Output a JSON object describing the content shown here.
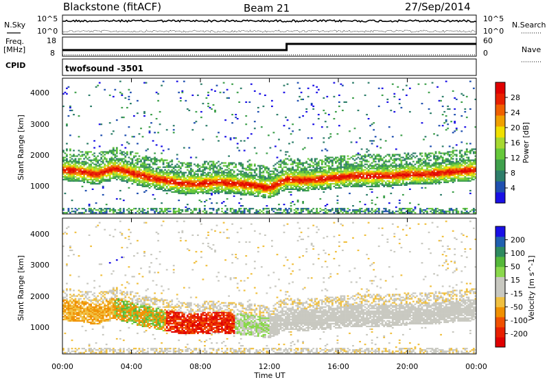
{
  "header": {
    "title": "Blackstone (fitACF)",
    "beam": "Beam 21",
    "date": "27/Sep/2014"
  },
  "left_labels": {
    "nsky": "N.Sky",
    "freq": "Freq.",
    "mhz": "[MHz]",
    "cpid": "CPID"
  },
  "right_labels": {
    "nsearch": "N.Search",
    "nave": "Nave"
  },
  "noise_panel": {
    "ticks_left": [
      "10^5",
      "10^0"
    ],
    "ticks_right": [
      "10^5",
      "10^0"
    ]
  },
  "freq_panel": {
    "ticks_left": [
      "18",
      "8"
    ],
    "ticks_right": [
      "60",
      "0"
    ]
  },
  "cpid_text": "twofsound  -3501",
  "x_axis": {
    "label": "Time UT",
    "ticks": [
      "00:00",
      "04:00",
      "08:00",
      "12:00",
      "16:00",
      "20:00",
      "00:00"
    ]
  },
  "power_panel": {
    "ylabel": "Slant Range [km]",
    "yticks": [
      "4000",
      "3000",
      "2000",
      "1000"
    ],
    "colorbar_label": "Power [dB]",
    "colorbar_ticks": [
      "28",
      "24",
      "20",
      "16",
      "12",
      "8",
      "4"
    ],
    "colors": [
      "#1a10e6",
      "#2050b0",
      "#2e7e6a",
      "#3fa04c",
      "#66c83a",
      "#a6d830",
      "#f0e000",
      "#f0a000",
      "#f06000",
      "#e82000",
      "#e00000"
    ]
  },
  "velocity_panel": {
    "ylabel": "Slant Range [km]",
    "yticks": [
      "4000",
      "3000",
      "2000",
      "1000"
    ],
    "colorbar_label": "Velocity [m s^-1]",
    "colorbar_ticks": [
      "200",
      "100",
      "50",
      "15",
      "-15",
      "-50",
      "-100",
      "-200"
    ],
    "colors": [
      "#1a10e6",
      "#2060b0",
      "#2e8a60",
      "#55b83a",
      "#8ad84c",
      "#c8c8c0",
      "#c8c8c0",
      "#f0c040",
      "#f09000",
      "#f05000",
      "#e82000",
      "#e00000"
    ]
  },
  "chart_data": {
    "type": "heatmap",
    "x_range_hours_ut": [
      0,
      24
    ],
    "y_range_slant_km": [
      180,
      4600
    ],
    "power_db_range": [
      0,
      32
    ],
    "velocity_range_ms": [
      -250,
      250
    ],
    "power_band_center_km": [
      [
        0,
        1600
      ],
      [
        1,
        1550
      ],
      [
        2,
        1450
      ],
      [
        3,
        1650
      ],
      [
        4,
        1500
      ],
      [
        5,
        1350
      ],
      [
        6,
        1250
      ],
      [
        7,
        1150
      ],
      [
        8,
        1150
      ],
      [
        9,
        1200
      ],
      [
        10,
        1150
      ],
      [
        11,
        1100
      ],
      [
        12,
        1000
      ],
      [
        13,
        1300
      ],
      [
        14,
        1250
      ],
      [
        15,
        1300
      ],
      [
        16,
        1350
      ],
      [
        17,
        1400
      ],
      [
        18,
        1400
      ],
      [
        19,
        1400
      ],
      [
        20,
        1450
      ],
      [
        21,
        1450
      ],
      [
        22,
        1500
      ],
      [
        23,
        1550
      ],
      [
        24,
        1600
      ]
    ],
    "frequency_step_hour": 13
  }
}
